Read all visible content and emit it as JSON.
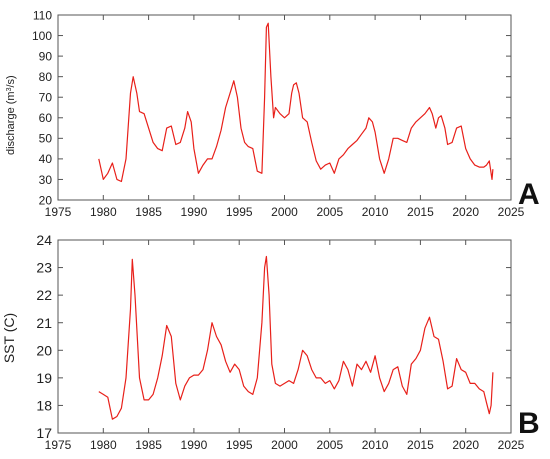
{
  "chart_data": [
    {
      "type": "line",
      "panel_label": "A",
      "title": "",
      "xlabel": "",
      "ylabel": "discharge (m",
      "ylabel_sup": "3",
      "ylabel_tail": "/s)",
      "xlim": [
        1975,
        2025
      ],
      "ylim": [
        20,
        110
      ],
      "xticks": [
        1975,
        1980,
        1985,
        1990,
        1995,
        2000,
        2005,
        2010,
        2015,
        2020,
        2025
      ],
      "yticks": [
        20,
        30,
        40,
        50,
        60,
        70,
        80,
        90,
        100,
        110
      ],
      "grid": false,
      "color": "#e8201a",
      "series": [
        {
          "x": [
            1979.5,
            1980.0,
            1980.5,
            1981.0,
            1981.5,
            1982.0,
            1982.5,
            1983.0,
            1983.3,
            1983.7,
            1984.0,
            1984.5,
            1985.0,
            1985.5,
            1986.0,
            1986.5,
            1987.0,
            1987.5,
            1988.0,
            1988.5,
            1989.0,
            1989.3,
            1989.7,
            1990.0,
            1990.5,
            1991.0,
            1991.5,
            1992.0,
            1992.5,
            1993.0,
            1993.5,
            1994.0,
            1994.4,
            1994.8,
            1995.2,
            1995.6,
            1996.0,
            1996.5,
            1997.0,
            1997.5,
            1997.8,
            1998.0,
            1998.2,
            1998.5,
            1998.8,
            1999.0,
            1999.5,
            2000.0,
            2000.5,
            2000.8,
            2001.0,
            2001.3,
            2001.6,
            2002.0,
            2002.5,
            2003.0,
            2003.5,
            2004.0,
            2004.5,
            2005.0,
            2005.5,
            2006.0,
            2006.5,
            2007.0,
            2007.5,
            2008.0,
            2008.5,
            2009.0,
            2009.3,
            2009.7,
            2010.0,
            2010.5,
            2011.0,
            2011.5,
            2012.0,
            2012.5,
            2013.0,
            2013.5,
            2014.0,
            2014.5,
            2015.0,
            2015.5,
            2016.0,
            2016.3,
            2016.7,
            2017.0,
            2017.3,
            2017.7,
            2018.0,
            2018.5,
            2019.0,
            2019.5,
            2020.0,
            2020.5,
            2021.0,
            2021.5,
            2022.0,
            2022.3,
            2022.6,
            2022.9,
            2023.0
          ],
          "y": [
            40,
            30,
            33,
            38,
            30,
            29,
            40,
            72,
            80,
            72,
            63,
            62,
            55,
            48,
            45,
            44,
            55,
            56,
            47,
            48,
            55,
            63,
            58,
            45,
            33,
            37,
            40,
            40,
            46,
            54,
            65,
            72,
            78,
            70,
            55,
            48,
            46,
            45,
            34,
            33,
            70,
            104,
            106,
            80,
            60,
            65,
            62,
            60,
            62,
            72,
            76,
            77,
            72,
            60,
            58,
            48,
            39,
            35,
            37,
            38,
            33,
            40,
            42,
            45,
            47,
            49,
            52,
            55,
            60,
            58,
            53,
            40,
            33,
            40,
            50,
            50,
            49,
            48,
            55,
            58,
            60,
            62,
            65,
            62,
            55,
            60,
            61,
            55,
            47,
            48,
            55,
            56,
            45,
            40,
            37,
            36,
            36,
            37,
            39,
            30,
            35
          ]
        }
      ]
    },
    {
      "type": "line",
      "panel_label": "B",
      "title": "",
      "xlabel": "",
      "ylabel": "SST (C)",
      "xlim": [
        1975,
        2025
      ],
      "ylim": [
        17,
        24
      ],
      "xticks": [
        1975,
        1980,
        1985,
        1990,
        1995,
        2000,
        2005,
        2010,
        2015,
        2020,
        2025
      ],
      "yticks": [
        17,
        18,
        19,
        20,
        21,
        22,
        23,
        24
      ],
      "grid": false,
      "color": "#e8201a",
      "series": [
        {
          "x": [
            1979.5,
            1980.0,
            1980.5,
            1981.0,
            1981.5,
            1982.0,
            1982.5,
            1983.0,
            1983.2,
            1983.5,
            1984.0,
            1984.5,
            1985.0,
            1985.5,
            1986.0,
            1986.5,
            1987.0,
            1987.5,
            1988.0,
            1988.5,
            1989.0,
            1989.5,
            1990.0,
            1990.5,
            1991.0,
            1991.5,
            1992.0,
            1992.5,
            1993.0,
            1993.5,
            1994.0,
            1994.5,
            1995.0,
            1995.5,
            1996.0,
            1996.5,
            1997.0,
            1997.5,
            1997.8,
            1998.0,
            1998.3,
            1998.6,
            1999.0,
            1999.5,
            2000.0,
            2000.5,
            2001.0,
            2001.5,
            2002.0,
            2002.5,
            2003.0,
            2003.5,
            2004.0,
            2004.5,
            2005.0,
            2005.5,
            2006.0,
            2006.5,
            2007.0,
            2007.5,
            2008.0,
            2008.5,
            2009.0,
            2009.5,
            2010.0,
            2010.5,
            2011.0,
            2011.5,
            2012.0,
            2012.5,
            2013.0,
            2013.5,
            2014.0,
            2014.5,
            2015.0,
            2015.5,
            2016.0,
            2016.5,
            2017.0,
            2017.5,
            2018.0,
            2018.5,
            2019.0,
            2019.5,
            2020.0,
            2020.5,
            2021.0,
            2021.5,
            2022.0,
            2022.3,
            2022.6,
            2022.8,
            2023.0
          ],
          "y": [
            18.5,
            18.4,
            18.3,
            17.5,
            17.6,
            17.9,
            19.0,
            21.5,
            23.3,
            22.0,
            19.0,
            18.2,
            18.2,
            18.4,
            19.0,
            19.8,
            20.9,
            20.5,
            18.8,
            18.2,
            18.7,
            19.0,
            19.1,
            19.1,
            19.3,
            20.0,
            21.0,
            20.5,
            20.2,
            19.6,
            19.2,
            19.5,
            19.3,
            18.7,
            18.5,
            18.4,
            19.0,
            21.0,
            23.0,
            23.4,
            22.0,
            19.5,
            18.8,
            18.7,
            18.8,
            18.9,
            18.8,
            19.3,
            20.0,
            19.8,
            19.3,
            19.0,
            19.0,
            18.8,
            18.9,
            18.6,
            18.9,
            19.6,
            19.3,
            18.7,
            19.5,
            19.3,
            19.6,
            19.2,
            19.8,
            19.0,
            18.5,
            18.8,
            19.3,
            19.4,
            18.7,
            18.4,
            19.5,
            19.7,
            20.0,
            20.8,
            21.2,
            20.5,
            20.4,
            19.6,
            18.6,
            18.7,
            19.7,
            19.3,
            19.2,
            18.8,
            18.8,
            18.6,
            18.5,
            18.1,
            17.7,
            18.0,
            19.2
          ]
        }
      ]
    }
  ]
}
